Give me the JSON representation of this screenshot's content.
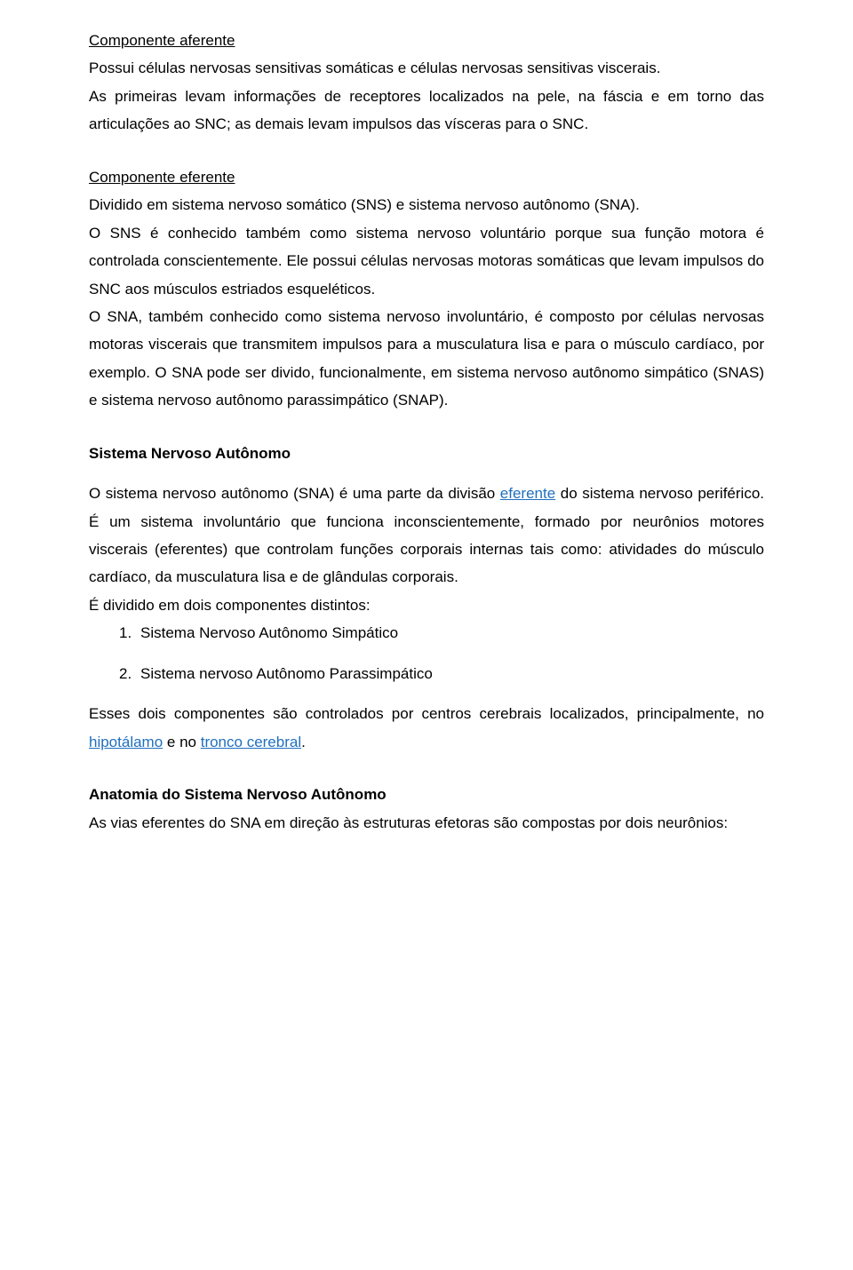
{
  "section1": {
    "heading": "Componente aferente",
    "p1a": "Possui células nervosas sensitivas somáticas e células nervosas sensitivas viscerais.",
    "p1b": "As primeiras levam informações de receptores localizados na pele, na fáscia e em torno das articulações ao SNC; as demais levam impulsos das vísceras para o SNC."
  },
  "section2": {
    "heading": "Componente eferente",
    "p1": "Dividido em sistema nervoso somático (SNS) e sistema nervoso autônomo (SNA).",
    "p2": "O SNS é conhecido também como sistema nervoso voluntário porque sua função motora é controlada conscientemente. Ele possui células nervosas motoras somáticas que levam impulsos do SNC aos músculos estriados esqueléticos.",
    "p3": "O SNA, também conhecido como sistema nervoso involuntário, é composto por células nervosas motoras viscerais que transmitem impulsos para a musculatura lisa e para o músculo cardíaco, por exemplo. O SNA pode ser divido, funcionalmente, em sistema nervoso autônomo simpático (SNAS) e sistema nervoso autônomo parassimpático (SNAP)."
  },
  "section3": {
    "heading": "Sistema Nervoso Autônomo",
    "p1_before": "O sistema nervoso autônomo (SNA) é uma parte da divisão ",
    "p1_link": "eferente",
    "p1_after": " do sistema nervoso periférico. É um sistema involuntário que funciona inconscientemente, formado por neurônios motores viscerais (eferentes) que controlam funções corporais internas tais como: atividades do músculo cardíaco, da musculatura lisa e de glândulas corporais.",
    "p2": "É dividido em dois componentes distintos:",
    "item1_num": "1.",
    "item1_text": "Sistema Nervoso Autônomo Simpático",
    "item2_num": "2.",
    "item2_text": "Sistema nervoso Autônomo Parassimpático",
    "p3_before": "Esses dois componentes são controlados por centros cerebrais localizados, principalmente, no ",
    "p3_link1": "hipotálamo",
    "p3_between": " e no ",
    "p3_link2": "tronco cerebral",
    "p3_after": "."
  },
  "section4": {
    "heading": "Anatomia do Sistema Nervoso Autônomo",
    "p1": "As vias eferentes do SNA em direção às estruturas efetoras são compostas por dois neurônios:"
  }
}
